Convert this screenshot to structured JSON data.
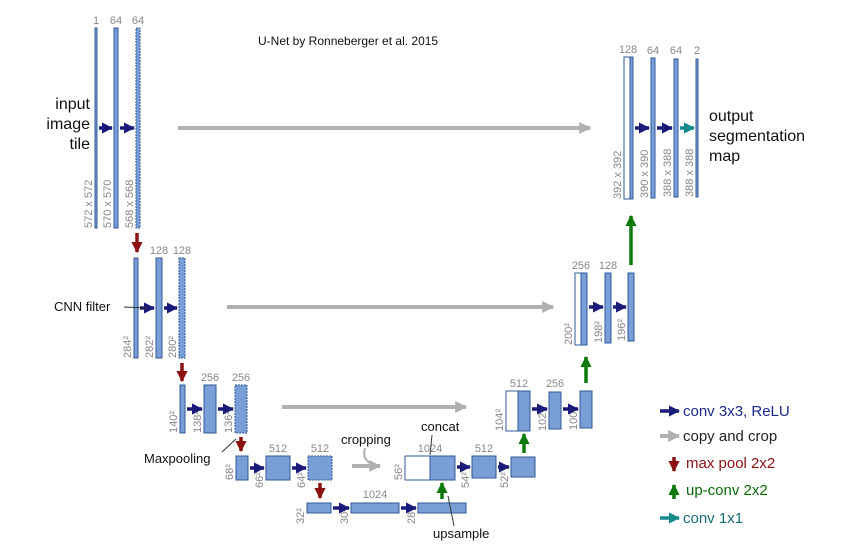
{
  "title": "U-Net by Ronneberger et al. 2015",
  "input_label": [
    "input",
    "image",
    "tile"
  ],
  "output_label": [
    "output",
    "segmentation",
    "map"
  ],
  "annotations": {
    "cnn_filter": "CNN filter",
    "maxpooling": "Maxpooling",
    "cropping": "cropping",
    "concat": "concat",
    "upsample": "upsample"
  },
  "channels": {
    "l1": [
      "1",
      "64",
      "64"
    ],
    "l2": [
      "128",
      "128"
    ],
    "l3": [
      "256",
      "256"
    ],
    "l4": [
      "512",
      "512"
    ],
    "l5": [
      "1024"
    ],
    "u4": [
      "1024",
      "512"
    ],
    "u3": [
      "512",
      "256"
    ],
    "u2": [
      "256",
      "128"
    ],
    "u1": [
      "128",
      "64",
      "64",
      "2"
    ]
  },
  "dims": {
    "l1": [
      "572 x 572",
      "570 x 570",
      "568 x 568"
    ],
    "l2": [
      "284²",
      "282²",
      "280²"
    ],
    "l3": [
      "140²",
      "138²",
      "136²"
    ],
    "l4": [
      "68²",
      "66²",
      "64²"
    ],
    "l5": [
      "32²",
      "30²",
      "28²"
    ],
    "u4": [
      "56²",
      "54²",
      "52²"
    ],
    "u3": [
      "104²",
      "102²",
      "100²"
    ],
    "u2": [
      "200²",
      "198²",
      "196²"
    ],
    "u1": [
      "392 x 392",
      "390 x 390",
      "388 x 388",
      "388 x 388"
    ]
  },
  "legend": [
    {
      "label": "conv 3x3, ReLU",
      "color": "#1a1a7a"
    },
    {
      "label": "copy and crop",
      "color": "#b0b0b0"
    },
    {
      "label": "max pool 2x2",
      "color": "#8b1010"
    },
    {
      "label": "up-conv 2x2",
      "color": "#0a7a0a"
    },
    {
      "label": "conv 1x1",
      "color": "#158a8a"
    }
  ],
  "colors": {
    "feature_map": "#7a9fd6",
    "feature_border": "#2f5a9a",
    "conv_arrow": "#1a1a7a",
    "copy_arrow": "#b0b0b0",
    "pool_arrow": "#8b1010",
    "up_arrow": "#0a7a0a",
    "final_arrow": "#158a8a"
  }
}
